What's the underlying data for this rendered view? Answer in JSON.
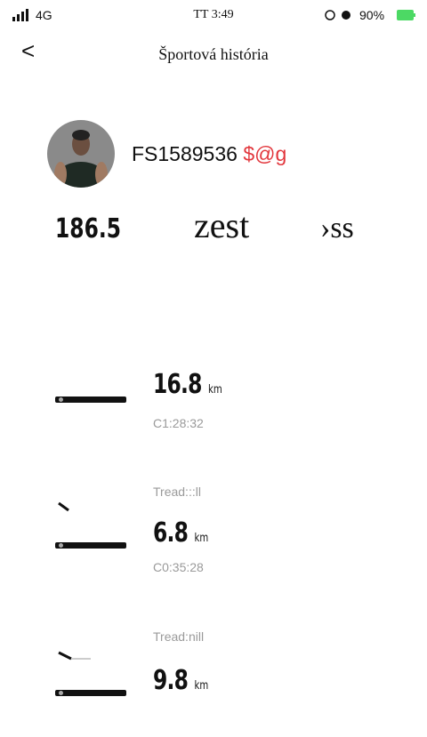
{
  "status_bar": {
    "network": "4G",
    "time": "TT 3:49",
    "battery": "90%"
  },
  "header": {
    "back": "<",
    "title": "Športová história"
  },
  "profile": {
    "username": "FS1589536",
    "tag": "$@g"
  },
  "stats": [
    "186.5",
    "zest",
    "›ss"
  ],
  "records": [
    {
      "distance": "16.8",
      "unit": "km",
      "duration": "C1:28:32"
    },
    {
      "label": "Tread:::ll",
      "distance": "6.8",
      "unit": "km",
      "duration": "C0:35:28"
    },
    {
      "label": "Tread:nill",
      "distance": "9.8",
      "unit": "km"
    }
  ]
}
